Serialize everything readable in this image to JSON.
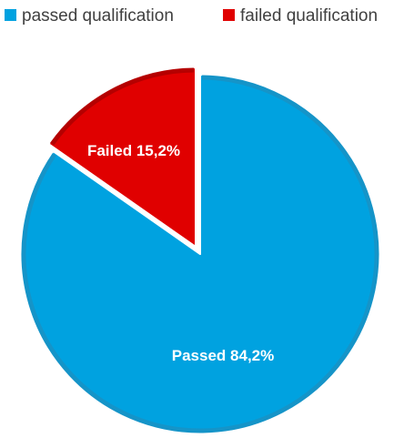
{
  "chart_data": {
    "type": "pie",
    "title": "",
    "legend_position": "top",
    "slices": [
      {
        "name": "passed qualification",
        "label": "Passed 84,2%",
        "value": 84.2,
        "color": "#00a2e0",
        "edge_color": "#1594c8"
      },
      {
        "name": "failed qualification",
        "label": "Failed 15,2%",
        "value": 15.2,
        "color": "#e00000",
        "edge_color": "#b50000"
      }
    ]
  }
}
